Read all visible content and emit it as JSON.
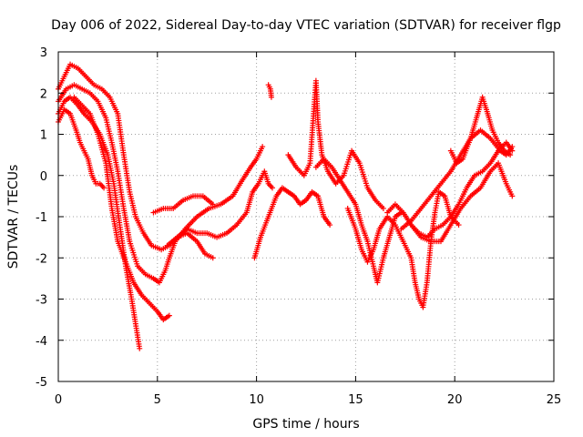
{
  "chart_data": {
    "type": "scatter",
    "marker": "+",
    "title": "Day 006 of 2022, Sidereal Day-to-day VTEC variation (SDTVAR) for receiver flgp",
    "xlabel": "GPS time / hours",
    "ylabel": "SDTVAR / TECUs",
    "xlim": [
      0,
      25
    ],
    "ylim": [
      -5,
      3
    ],
    "xticks": [
      "0",
      "5",
      "10",
      "15",
      "20",
      "25"
    ],
    "yticks": [
      "-5",
      "-4",
      "-3",
      "-2",
      "-1",
      "0",
      "1",
      "2",
      "3"
    ],
    "grid": true,
    "color": "#ff0000",
    "series": [
      {
        "name": "track-1",
        "points": [
          [
            0.0,
            2.1
          ],
          [
            0.3,
            2.4
          ],
          [
            0.6,
            2.7
          ],
          [
            1.0,
            2.6
          ],
          [
            1.4,
            2.4
          ],
          [
            1.8,
            2.2
          ],
          [
            2.2,
            2.1
          ],
          [
            2.6,
            1.9
          ],
          [
            3.0,
            1.5
          ],
          [
            3.3,
            0.5
          ],
          [
            3.6,
            -0.4
          ],
          [
            3.9,
            -1.0
          ],
          [
            4.3,
            -1.4
          ],
          [
            4.7,
            -1.7
          ],
          [
            5.2,
            -1.8
          ],
          [
            5.6,
            -1.7
          ],
          [
            6.0,
            -1.5
          ],
          [
            6.5,
            -1.3
          ],
          [
            7.0,
            -1.4
          ],
          [
            7.5,
            -1.4
          ],
          [
            8.0,
            -1.5
          ],
          [
            8.5,
            -1.4
          ],
          [
            9.0,
            -1.2
          ],
          [
            9.5,
            -0.9
          ],
          [
            9.8,
            -0.4
          ],
          [
            10.1,
            -0.2
          ],
          [
            10.4,
            0.1
          ],
          [
            10.6,
            -0.2
          ],
          [
            10.8,
            -0.3
          ]
        ]
      },
      {
        "name": "track-2",
        "points": [
          [
            0.0,
            1.8
          ],
          [
            0.4,
            2.1
          ],
          [
            0.8,
            2.2
          ],
          [
            1.2,
            2.1
          ],
          [
            1.6,
            2.0
          ],
          [
            2.0,
            1.8
          ],
          [
            2.4,
            1.4
          ],
          [
            2.7,
            0.8
          ],
          [
            3.0,
            0.1
          ],
          [
            3.3,
            -0.8
          ],
          [
            3.6,
            -1.6
          ],
          [
            4.0,
            -2.2
          ],
          [
            4.4,
            -2.4
          ],
          [
            4.8,
            -2.5
          ],
          [
            5.1,
            -2.6
          ],
          [
            5.4,
            -2.3
          ],
          [
            5.6,
            -2.0
          ],
          [
            5.9,
            -1.6
          ],
          [
            6.4,
            -1.3
          ],
          [
            7.0,
            -1.0
          ],
          [
            7.6,
            -0.8
          ],
          [
            8.2,
            -0.7
          ],
          [
            8.8,
            -0.5
          ],
          [
            9.3,
            -0.1
          ],
          [
            9.7,
            0.2
          ],
          [
            10.0,
            0.4
          ],
          [
            10.3,
            0.7
          ]
        ]
      },
      {
        "name": "track-3",
        "points": [
          [
            0.0,
            1.5
          ],
          [
            0.3,
            1.8
          ],
          [
            0.6,
            1.9
          ],
          [
            1.0,
            1.7
          ],
          [
            1.3,
            1.5
          ],
          [
            1.7,
            1.3
          ],
          [
            2.1,
            1.0
          ],
          [
            2.5,
            0.5
          ],
          [
            2.8,
            -0.2
          ],
          [
            3.1,
            -1.2
          ],
          [
            3.4,
            -2.2
          ],
          [
            3.7,
            -3.0
          ],
          [
            3.9,
            -3.6
          ],
          [
            4.1,
            -4.2
          ]
        ]
      },
      {
        "name": "track-4",
        "points": [
          [
            0.0,
            1.3
          ],
          [
            0.3,
            1.6
          ],
          [
            0.6,
            1.5
          ],
          [
            0.9,
            1.1
          ],
          [
            1.1,
            0.8
          ],
          [
            1.3,
            0.6
          ],
          [
            1.5,
            0.4
          ],
          [
            1.7,
            0.0
          ],
          [
            1.9,
            -0.2
          ],
          [
            2.1,
            -0.2
          ],
          [
            2.3,
            -0.3
          ]
        ]
      },
      {
        "name": "track-5",
        "points": [
          [
            0.8,
            1.9
          ],
          [
            1.2,
            1.7
          ],
          [
            1.6,
            1.5
          ],
          [
            2.0,
            1.0
          ],
          [
            2.4,
            0.3
          ],
          [
            2.7,
            -0.8
          ],
          [
            3.0,
            -1.6
          ],
          [
            3.4,
            -2.1
          ],
          [
            3.8,
            -2.6
          ],
          [
            4.2,
            -2.9
          ],
          [
            4.6,
            -3.1
          ],
          [
            5.0,
            -3.3
          ],
          [
            5.3,
            -3.5
          ],
          [
            5.6,
            -3.4
          ]
        ]
      },
      {
        "name": "track-6",
        "points": [
          [
            4.8,
            -0.9
          ],
          [
            5.3,
            -0.8
          ],
          [
            5.8,
            -0.8
          ],
          [
            6.3,
            -0.6
          ],
          [
            6.8,
            -0.5
          ],
          [
            7.3,
            -0.5
          ],
          [
            7.8,
            -0.7
          ]
        ]
      },
      {
        "name": "track-7",
        "points": [
          [
            5.5,
            -1.7
          ],
          [
            6.0,
            -1.5
          ],
          [
            6.5,
            -1.4
          ],
          [
            7.0,
            -1.6
          ],
          [
            7.4,
            -1.9
          ],
          [
            7.8,
            -2.0
          ]
        ]
      },
      {
        "name": "track-8",
        "points": [
          [
            9.9,
            -2.0
          ],
          [
            10.2,
            -1.5
          ],
          [
            10.6,
            -1.0
          ],
          [
            11.0,
            -0.5
          ],
          [
            11.3,
            -0.3
          ],
          [
            11.6,
            -0.4
          ],
          [
            11.9,
            -0.5
          ],
          [
            12.2,
            -0.7
          ],
          [
            12.5,
            -0.6
          ],
          [
            12.8,
            -0.4
          ],
          [
            13.1,
            -0.5
          ],
          [
            13.4,
            -1.0
          ],
          [
            13.7,
            -1.2
          ]
        ]
      },
      {
        "name": "track-9",
        "points": [
          [
            10.6,
            2.2
          ],
          [
            10.7,
            2.1
          ],
          [
            10.75,
            1.9
          ]
        ]
      },
      {
        "name": "track-10",
        "points": [
          [
            11.6,
            0.5
          ],
          [
            12.0,
            0.2
          ],
          [
            12.4,
            0.0
          ],
          [
            12.7,
            0.3
          ],
          [
            13.0,
            2.3
          ],
          [
            13.1,
            1.3
          ],
          [
            13.3,
            0.5
          ],
          [
            13.6,
            0.1
          ],
          [
            14.0,
            -0.2
          ],
          [
            14.4,
            0.0
          ],
          [
            14.8,
            0.6
          ],
          [
            15.2,
            0.3
          ],
          [
            15.6,
            -0.3
          ],
          [
            16.0,
            -0.6
          ],
          [
            16.4,
            -0.8
          ]
        ]
      },
      {
        "name": "track-11",
        "points": [
          [
            13.0,
            0.2
          ],
          [
            13.4,
            0.4
          ],
          [
            13.8,
            0.2
          ],
          [
            14.2,
            -0.1
          ],
          [
            14.6,
            -0.4
          ],
          [
            15.0,
            -0.7
          ],
          [
            15.3,
            -1.2
          ],
          [
            15.6,
            -1.6
          ],
          [
            15.9,
            -2.2
          ],
          [
            16.1,
            -2.6
          ],
          [
            16.4,
            -2.0
          ],
          [
            16.7,
            -1.5
          ],
          [
            17.0,
            -1.0
          ],
          [
            17.3,
            -0.9
          ]
        ]
      },
      {
        "name": "track-12",
        "points": [
          [
            14.6,
            -0.8
          ],
          [
            15.0,
            -1.3
          ],
          [
            15.3,
            -1.8
          ],
          [
            15.6,
            -2.1
          ],
          [
            15.9,
            -1.8
          ],
          [
            16.2,
            -1.3
          ],
          [
            16.6,
            -1.0
          ],
          [
            17.0,
            -1.2
          ],
          [
            17.4,
            -1.6
          ],
          [
            17.8,
            -2.0
          ],
          [
            18.0,
            -2.6
          ],
          [
            18.2,
            -3.0
          ],
          [
            18.4,
            -3.2
          ],
          [
            18.6,
            -2.6
          ],
          [
            18.8,
            -1.6
          ],
          [
            19.0,
            -0.9
          ],
          [
            19.2,
            -0.4
          ],
          [
            19.5,
            -0.5
          ],
          [
            19.8,
            -1.0
          ],
          [
            20.2,
            -1.2
          ]
        ]
      },
      {
        "name": "track-13",
        "points": [
          [
            16.6,
            -0.9
          ],
          [
            17.0,
            -0.7
          ],
          [
            17.4,
            -0.9
          ],
          [
            17.8,
            -1.2
          ],
          [
            18.2,
            -1.4
          ],
          [
            18.6,
            -1.5
          ],
          [
            19.0,
            -1.3
          ],
          [
            19.4,
            -1.2
          ],
          [
            19.8,
            -1.0
          ],
          [
            20.2,
            -0.7
          ],
          [
            20.6,
            -0.3
          ],
          [
            21.0,
            0.0
          ],
          [
            21.4,
            0.1
          ],
          [
            21.8,
            0.3
          ],
          [
            22.2,
            0.6
          ],
          [
            22.6,
            0.8
          ],
          [
            22.9,
            0.6
          ]
        ]
      },
      {
        "name": "track-14",
        "points": [
          [
            17.3,
            -1.3
          ],
          [
            17.8,
            -1.1
          ],
          [
            18.3,
            -0.8
          ],
          [
            18.8,
            -0.5
          ],
          [
            19.3,
            -0.2
          ],
          [
            19.8,
            0.1
          ],
          [
            20.3,
            0.5
          ],
          [
            20.8,
            0.9
          ],
          [
            21.3,
            1.1
          ],
          [
            21.8,
            0.9
          ],
          [
            22.3,
            0.6
          ],
          [
            22.6,
            0.5
          ],
          [
            22.9,
            0.7
          ]
        ]
      },
      {
        "name": "track-15",
        "points": [
          [
            17.8,
            -1.2
          ],
          [
            18.3,
            -1.5
          ],
          [
            18.8,
            -1.6
          ],
          [
            19.3,
            -1.6
          ],
          [
            19.8,
            -1.2
          ],
          [
            20.3,
            -0.8
          ],
          [
            20.8,
            -0.5
          ],
          [
            21.3,
            -0.3
          ],
          [
            21.8,
            0.1
          ],
          [
            22.2,
            0.3
          ],
          [
            22.6,
            -0.2
          ],
          [
            22.9,
            -0.5
          ]
        ]
      },
      {
        "name": "track-16",
        "points": [
          [
            19.8,
            0.6
          ],
          [
            20.1,
            0.3
          ],
          [
            20.4,
            0.4
          ],
          [
            20.8,
            0.9
          ],
          [
            21.1,
            1.4
          ],
          [
            21.4,
            1.9
          ],
          [
            21.6,
            1.6
          ],
          [
            21.9,
            1.1
          ],
          [
            22.2,
            0.8
          ],
          [
            22.5,
            0.6
          ],
          [
            22.8,
            0.5
          ]
        ]
      }
    ]
  }
}
